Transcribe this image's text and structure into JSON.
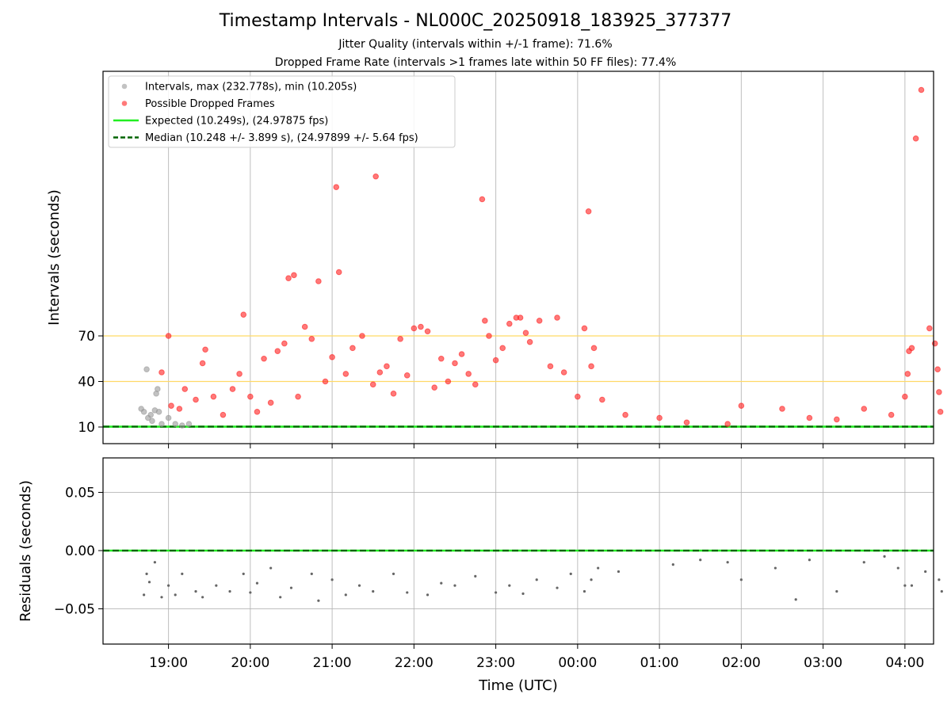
{
  "chart_data": [
    {
      "type": "scatter",
      "title": "Timestamp Intervals - NL000C_20250918_183925_377377",
      "subtitle_1": "Jitter Quality (intervals within +/-1 frame): 71.6%",
      "subtitle_2": "Dropped Frame Rate (intervals >1 frames late within 50 FF files): 77.4%",
      "xlabel": "",
      "ylabel": "Intervals (seconds)",
      "x_ticks": [
        "19:00",
        "20:00",
        "21:00",
        "22:00",
        "23:00",
        "00:00",
        "01:00",
        "02:00",
        "03:00",
        "04:00"
      ],
      "y_ticks": [
        "10",
        "40",
        "70"
      ],
      "ylim": [
        0,
        245
      ],
      "grid": "vertical",
      "legend_position": "upper left",
      "legend": [
        "Intervals, max (232.778s), min (10.205s)",
        "Possible Dropped Frames",
        "Expected (10.249s), (24.97875 fps)",
        "Median (10.248 +/- 3.899 s), (24.97899 +/- 5.64 fps)"
      ],
      "reference_lines": [
        {
          "label": "Expected",
          "y": 10.249,
          "color": "#22ee22",
          "style": "solid"
        },
        {
          "label": "Median",
          "y": 10.248,
          "color": "#006400",
          "style": "dashed"
        },
        {
          "y": 40,
          "color": "#ffd966",
          "style": "solid"
        },
        {
          "y": 70,
          "color": "#ffd966",
          "style": "solid"
        }
      ],
      "series": [
        {
          "name": "Intervals",
          "color": "#9a9a9a",
          "points": [
            [
              "18:40",
              22
            ],
            [
              "18:42",
              20
            ],
            [
              "18:44",
              48
            ],
            [
              "18:45",
              16
            ],
            [
              "18:47",
              18
            ],
            [
              "18:48",
              14
            ],
            [
              "18:50",
              21
            ],
            [
              "18:51",
              32
            ],
            [
              "18:52",
              35
            ],
            [
              "18:53",
              20
            ],
            [
              "18:55",
              12
            ],
            [
              "19:00",
              16
            ],
            [
              "19:05",
              12
            ],
            [
              "19:10",
              11
            ],
            [
              "19:15",
              12
            ]
          ]
        },
        {
          "name": "Possible Dropped Frames",
          "color": "#ff2020",
          "points": [
            [
              "18:55",
              46
            ],
            [
              "19:00",
              70
            ],
            [
              "19:02",
              24
            ],
            [
              "19:08",
              22
            ],
            [
              "19:12",
              35
            ],
            [
              "19:20",
              28
            ],
            [
              "19:25",
              52
            ],
            [
              "19:27",
              61
            ],
            [
              "19:33",
              30
            ],
            [
              "19:40",
              18
            ],
            [
              "19:47",
              35
            ],
            [
              "19:52",
              45
            ],
            [
              "19:55",
              84
            ],
            [
              "20:00",
              30
            ],
            [
              "20:05",
              20
            ],
            [
              "20:10",
              55
            ],
            [
              "20:15",
              26
            ],
            [
              "20:20",
              60
            ],
            [
              "20:25",
              65
            ],
            [
              "20:28",
              108
            ],
            [
              "20:32",
              110
            ],
            [
              "20:35",
              30
            ],
            [
              "20:40",
              76
            ],
            [
              "20:45",
              68
            ],
            [
              "20:50",
              106
            ],
            [
              "20:55",
              40
            ],
            [
              "21:00",
              56
            ],
            [
              "21:03",
              168
            ],
            [
              "21:05",
              112
            ],
            [
              "21:10",
              45
            ],
            [
              "21:15",
              62
            ],
            [
              "21:22",
              70
            ],
            [
              "21:30",
              38
            ],
            [
              "21:32",
              175
            ],
            [
              "21:35",
              46
            ],
            [
              "21:40",
              50
            ],
            [
              "21:45",
              32
            ],
            [
              "21:50",
              68
            ],
            [
              "21:55",
              44
            ],
            [
              "22:00",
              75
            ],
            [
              "22:05",
              76
            ],
            [
              "22:10",
              73
            ],
            [
              "22:15",
              36
            ],
            [
              "22:20",
              55
            ],
            [
              "22:25",
              40
            ],
            [
              "22:30",
              52
            ],
            [
              "22:35",
              58
            ],
            [
              "22:40",
              45
            ],
            [
              "22:45",
              38
            ],
            [
              "22:50",
              160
            ],
            [
              "22:52",
              80
            ],
            [
              "22:55",
              70
            ],
            [
              "23:00",
              54
            ],
            [
              "23:05",
              62
            ],
            [
              "23:10",
              78
            ],
            [
              "23:15",
              82
            ],
            [
              "23:18",
              82
            ],
            [
              "23:22",
              72
            ],
            [
              "23:25",
              66
            ],
            [
              "23:32",
              80
            ],
            [
              "23:40",
              50
            ],
            [
              "23:45",
              82
            ],
            [
              "23:50",
              46
            ],
            [
              "00:00",
              30
            ],
            [
              "00:05",
              75
            ],
            [
              "00:08",
              152
            ],
            [
              "00:10",
              50
            ],
            [
              "00:12",
              62
            ],
            [
              "00:18",
              28
            ],
            [
              "00:35",
              18
            ],
            [
              "01:00",
              16
            ],
            [
              "01:20",
              13
            ],
            [
              "01:50",
              12
            ],
            [
              "02:00",
              24
            ],
            [
              "02:30",
              22
            ],
            [
              "02:50",
              16
            ],
            [
              "03:10",
              15
            ],
            [
              "03:30",
              22
            ],
            [
              "03:50",
              18
            ],
            [
              "04:00",
              30
            ],
            [
              "04:02",
              45
            ],
            [
              "04:03",
              60
            ],
            [
              "04:05",
              62
            ],
            [
              "04:08",
              200
            ],
            [
              "04:12",
              232
            ],
            [
              "04:18",
              75
            ],
            [
              "04:22",
              65
            ],
            [
              "04:24",
              48
            ],
            [
              "04:25",
              33
            ],
            [
              "04:26",
              20
            ]
          ]
        }
      ]
    },
    {
      "type": "scatter",
      "xlabel": "Time (UTC)",
      "ylabel": "Residuals (seconds)",
      "x_ticks": [
        "19:00",
        "20:00",
        "21:00",
        "22:00",
        "23:00",
        "00:00",
        "01:00",
        "02:00",
        "03:00",
        "04:00"
      ],
      "y_ticks": [
        "0.05",
        "0.00",
        "−0.05"
      ],
      "ylim": [
        -0.08,
        0.08
      ],
      "grid": "both",
      "reference_lines": [
        {
          "y": 0.0,
          "color": "#22ee22",
          "style": "solid"
        },
        {
          "y": 0.0,
          "color": "#006400",
          "style": "dashed"
        }
      ],
      "series": [
        {
          "name": "Residuals",
          "color": "#666666",
          "points": [
            [
              "18:42",
              -0.038
            ],
            [
              "18:44",
              -0.02
            ],
            [
              "18:46",
              -0.027
            ],
            [
              "18:50",
              -0.01
            ],
            [
              "18:55",
              -0.04
            ],
            [
              "19:00",
              -0.03
            ],
            [
              "19:05",
              -0.038
            ],
            [
              "19:10",
              -0.02
            ],
            [
              "19:20",
              -0.035
            ],
            [
              "19:25",
              -0.04
            ],
            [
              "19:35",
              -0.03
            ],
            [
              "19:45",
              -0.035
            ],
            [
              "19:55",
              -0.02
            ],
            [
              "20:00",
              -0.036
            ],
            [
              "20:05",
              -0.028
            ],
            [
              "20:15",
              -0.015
            ],
            [
              "20:22",
              -0.04
            ],
            [
              "20:30",
              -0.032
            ],
            [
              "20:45",
              -0.02
            ],
            [
              "20:50",
              -0.043
            ],
            [
              "21:00",
              -0.025
            ],
            [
              "21:10",
              -0.038
            ],
            [
              "21:20",
              -0.03
            ],
            [
              "21:30",
              -0.035
            ],
            [
              "21:45",
              -0.02
            ],
            [
              "21:55",
              -0.036
            ],
            [
              "22:10",
              -0.038
            ],
            [
              "22:20",
              -0.028
            ],
            [
              "22:30",
              -0.03
            ],
            [
              "22:45",
              -0.022
            ],
            [
              "23:00",
              -0.036
            ],
            [
              "23:10",
              -0.03
            ],
            [
              "23:20",
              -0.037
            ],
            [
              "23:30",
              -0.025
            ],
            [
              "23:45",
              -0.032
            ],
            [
              "23:55",
              -0.02
            ],
            [
              "00:05",
              -0.035
            ],
            [
              "00:10",
              -0.025
            ],
            [
              "00:15",
              -0.015
            ],
            [
              "00:30",
              -0.018
            ],
            [
              "01:10",
              -0.012
            ],
            [
              "01:30",
              -0.008
            ],
            [
              "01:50",
              -0.01
            ],
            [
              "02:00",
              -0.025
            ],
            [
              "02:25",
              -0.015
            ],
            [
              "02:40",
              -0.042
            ],
            [
              "02:50",
              -0.008
            ],
            [
              "03:10",
              -0.035
            ],
            [
              "03:30",
              -0.01
            ],
            [
              "03:45",
              -0.005
            ],
            [
              "03:55",
              -0.015
            ],
            [
              "04:00",
              -0.03
            ],
            [
              "04:05",
              -0.03
            ],
            [
              "04:15",
              -0.018
            ],
            [
              "04:25",
              -0.025
            ],
            [
              "04:27",
              -0.035
            ]
          ]
        }
      ]
    }
  ]
}
